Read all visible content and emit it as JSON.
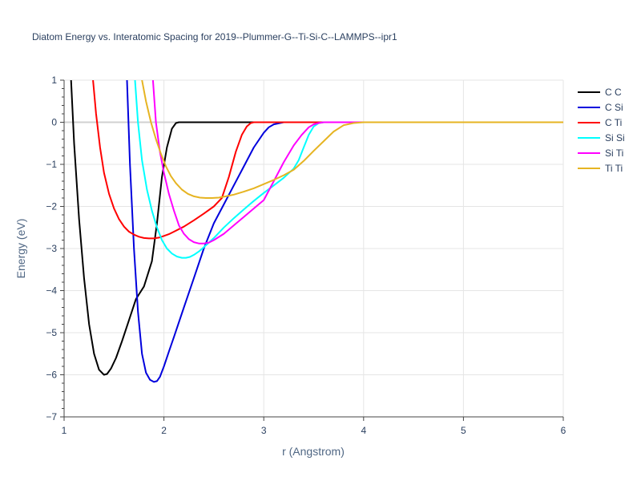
{
  "chart_data": {
    "type": "line",
    "title": "Diatom Energy vs. Interatomic Spacing for 2019--Plummer-G--Ti-Si-C--LAMMPS--ipr1",
    "xlabel": "r (Angstrom)",
    "ylabel": "Energy (eV)",
    "xlim": [
      1,
      6
    ],
    "ylim": [
      -7,
      1
    ],
    "xticks": [
      1,
      2,
      3,
      4,
      5,
      6
    ],
    "yticks": [
      1,
      0,
      -1,
      -2,
      -3,
      -4,
      -5,
      -6,
      -7
    ],
    "xtick_labels": [
      "1",
      "2",
      "3",
      "4",
      "5",
      "6"
    ],
    "ytick_labels": [
      "1",
      "0",
      "−1",
      "−2",
      "−3",
      "−4",
      "−5",
      "−6",
      "−7"
    ],
    "grid": true,
    "legend_position": "top-right",
    "series": [
      {
        "name": "C C",
        "color": "#000000",
        "x": [
          1.07,
          1.1,
          1.15,
          1.2,
          1.25,
          1.3,
          1.35,
          1.4,
          1.43,
          1.47,
          1.52,
          1.58,
          1.65,
          1.72,
          1.8,
          1.88,
          1.93,
          1.98,
          2.03,
          2.08,
          2.12,
          2.15,
          2.2,
          3.0,
          4.0,
          5.0,
          6.0
        ],
        "y": [
          1.0,
          -0.5,
          -2.3,
          -3.7,
          -4.8,
          -5.5,
          -5.88,
          -6.0,
          -5.98,
          -5.85,
          -5.6,
          -5.2,
          -4.7,
          -4.2,
          -3.9,
          -3.3,
          -2.4,
          -1.3,
          -0.6,
          -0.15,
          -0.02,
          0.0,
          0.0,
          0.0,
          0.0,
          0.0,
          0.0
        ]
      },
      {
        "name": "C Si",
        "color": "#0000dd",
        "x": [
          1.63,
          1.66,
          1.7,
          1.74,
          1.78,
          1.82,
          1.86,
          1.9,
          1.93,
          1.96,
          2.0,
          2.05,
          2.1,
          2.2,
          2.3,
          2.4,
          2.5,
          2.6,
          2.7,
          2.8,
          2.9,
          3.0,
          3.05,
          3.1,
          3.2,
          3.3,
          4.0,
          5.0,
          6.0
        ],
        "y": [
          1.0,
          -1.0,
          -3.0,
          -4.5,
          -5.5,
          -5.95,
          -6.12,
          -6.17,
          -6.15,
          -6.05,
          -5.8,
          -5.45,
          -5.1,
          -4.4,
          -3.7,
          -3.0,
          -2.4,
          -1.95,
          -1.5,
          -1.05,
          -0.6,
          -0.25,
          -0.12,
          -0.05,
          0.0,
          0.0,
          0.0,
          0.0,
          0.0
        ]
      },
      {
        "name": "C Ti",
        "color": "#ff0000",
        "x": [
          1.29,
          1.32,
          1.36,
          1.4,
          1.45,
          1.5,
          1.55,
          1.6,
          1.65,
          1.7,
          1.75,
          1.8,
          1.85,
          1.9,
          1.95,
          2.0,
          2.05,
          2.1,
          2.2,
          2.3,
          2.4,
          2.5,
          2.58,
          2.65,
          2.72,
          2.78,
          2.83,
          2.87,
          2.9,
          3.0,
          4.0,
          5.0,
          6.0
        ],
        "y": [
          1.0,
          0.2,
          -0.6,
          -1.2,
          -1.7,
          -2.05,
          -2.3,
          -2.48,
          -2.6,
          -2.67,
          -2.72,
          -2.75,
          -2.76,
          -2.76,
          -2.74,
          -2.7,
          -2.66,
          -2.6,
          -2.48,
          -2.33,
          -2.17,
          -2.0,
          -1.8,
          -1.3,
          -0.7,
          -0.3,
          -0.1,
          -0.02,
          0.0,
          0.0,
          0.0,
          0.0,
          0.0
        ]
      },
      {
        "name": "Si Si",
        "color": "#00ffff",
        "x": [
          1.71,
          1.74,
          1.78,
          1.83,
          1.88,
          1.93,
          1.98,
          2.03,
          2.08,
          2.13,
          2.18,
          2.22,
          2.26,
          2.3,
          2.35,
          2.4,
          2.5,
          2.6,
          2.7,
          2.8,
          2.9,
          3.0,
          3.1,
          3.2,
          3.3,
          3.35,
          3.4,
          3.45,
          3.5,
          3.55,
          3.6,
          4.0,
          5.0,
          6.0
        ],
        "y": [
          1.0,
          0.0,
          -0.9,
          -1.6,
          -2.1,
          -2.5,
          -2.8,
          -3.0,
          -3.12,
          -3.19,
          -3.22,
          -3.22,
          -3.2,
          -3.15,
          -3.07,
          -2.97,
          -2.75,
          -2.5,
          -2.28,
          -2.07,
          -1.87,
          -1.68,
          -1.5,
          -1.32,
          -1.1,
          -0.9,
          -0.6,
          -0.3,
          -0.1,
          -0.02,
          0.0,
          0.0,
          0.0,
          0.0
        ]
      },
      {
        "name": "Si Ti",
        "color": "#ff00ff",
        "x": [
          1.89,
          1.92,
          1.96,
          2.0,
          2.05,
          2.1,
          2.15,
          2.2,
          2.25,
          2.3,
          2.35,
          2.4,
          2.45,
          2.5,
          2.6,
          2.7,
          2.8,
          2.9,
          3.0,
          3.1,
          3.2,
          3.3,
          3.38,
          3.45,
          3.5,
          3.55,
          3.6,
          3.7,
          4.0,
          5.0,
          6.0
        ],
        "y": [
          1.0,
          0.0,
          -0.7,
          -1.2,
          -1.7,
          -2.1,
          -2.45,
          -2.65,
          -2.78,
          -2.85,
          -2.88,
          -2.88,
          -2.86,
          -2.8,
          -2.65,
          -2.45,
          -2.25,
          -2.05,
          -1.85,
          -1.4,
          -0.95,
          -0.55,
          -0.3,
          -0.12,
          -0.05,
          -0.02,
          0.0,
          0.0,
          0.0,
          0.0,
          0.0
        ]
      },
      {
        "name": "Ti Ti",
        "color": "#e6b422",
        "x": [
          1.78,
          1.82,
          1.87,
          1.92,
          1.97,
          2.02,
          2.07,
          2.12,
          2.18,
          2.24,
          2.3,
          2.36,
          2.42,
          2.48,
          2.55,
          2.62,
          2.7,
          2.8,
          2.9,
          3.0,
          3.1,
          3.2,
          3.3,
          3.4,
          3.5,
          3.6,
          3.7,
          3.8,
          3.9,
          4.0,
          5.0,
          6.0
        ],
        "y": [
          1.0,
          0.5,
          0.0,
          -0.4,
          -0.75,
          -1.05,
          -1.28,
          -1.45,
          -1.6,
          -1.7,
          -1.76,
          -1.79,
          -1.8,
          -1.8,
          -1.79,
          -1.76,
          -1.72,
          -1.65,
          -1.57,
          -1.47,
          -1.37,
          -1.26,
          -1.13,
          -0.92,
          -0.68,
          -0.45,
          -0.22,
          -0.07,
          -0.02,
          0.0,
          0.0,
          0.0
        ]
      }
    ]
  }
}
